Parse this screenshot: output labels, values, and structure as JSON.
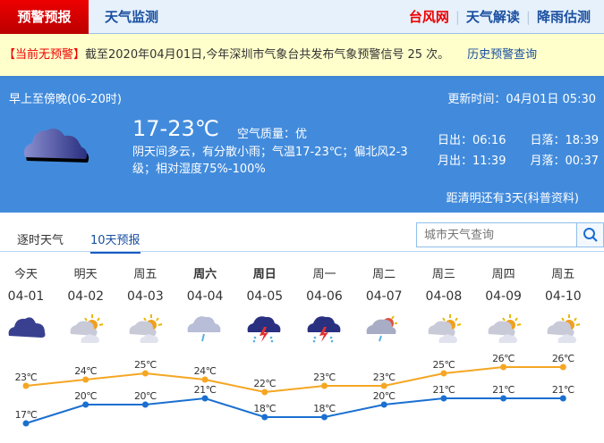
{
  "nav": {
    "active": "预警预报",
    "monitor": "天气监测",
    "links": [
      "台风网",
      "天气解读",
      "降雨估测"
    ],
    "red_link_color": "#ee0000"
  },
  "alert": {
    "tag": "【当前无预警】",
    "text": "截至2020年04月01日,今年深圳市气象台共发布气象预警信号 25 次。",
    "history": "历史预警查询"
  },
  "today": {
    "period": "早上至傍晚(06-20时)",
    "update": "更新时间：04月01日 05:30",
    "temp": "17-23℃",
    "aq_label": "空气质量：",
    "aq_value": "优",
    "desc": "阴天间多云，有分散小雨；气温17-23℃；偏北风2-3级；相对湿度75%-100%",
    "sunrise": "日出：06:16",
    "sunset": "日落：18:39",
    "moonrise": "月出：11:39",
    "moonset": "月落：00:37",
    "note": "距清明还有3天(科普资料)",
    "icon": "overcast-cloud-icon"
  },
  "tabs": [
    "逐时天气",
    "10天预报"
  ],
  "search": {
    "placeholder": "城市天气查询"
  },
  "forecast": [
    {
      "week": "今天",
      "date": "04-01",
      "icon": "overcast"
    },
    {
      "week": "明天",
      "date": "04-02",
      "icon": "partly-cloudy"
    },
    {
      "week": "周五",
      "date": "04-03",
      "icon": "partly-cloudy"
    },
    {
      "week": "周六",
      "date": "04-04",
      "icon": "light-rain",
      "bold": true
    },
    {
      "week": "周日",
      "date": "04-05",
      "icon": "thunderstorm",
      "bold": true
    },
    {
      "week": "周一",
      "date": "04-06",
      "icon": "thunderstorm"
    },
    {
      "week": "周二",
      "date": "04-07",
      "icon": "cloudy-shower"
    },
    {
      "week": "周三",
      "date": "04-08",
      "icon": "partly-cloudy"
    },
    {
      "week": "周四",
      "date": "04-09",
      "icon": "partly-cloudy"
    },
    {
      "week": "周五",
      "date": "04-10",
      "icon": "partly-cloudy"
    }
  ],
  "chart_data": {
    "type": "line",
    "categories": [
      "04-01",
      "04-02",
      "04-03",
      "04-04",
      "04-05",
      "04-06",
      "04-07",
      "04-08",
      "04-09",
      "04-10"
    ],
    "series": [
      {
        "values": [
          23,
          24,
          25,
          24,
          22,
          23,
          23,
          25,
          26,
          26
        ],
        "color": "#f5a623"
      },
      {
        "values": [
          17,
          20,
          20,
          21,
          18,
          18,
          20,
          21,
          21,
          21
        ],
        "color": "#1a6fd0"
      }
    ],
    "unit": "℃"
  }
}
